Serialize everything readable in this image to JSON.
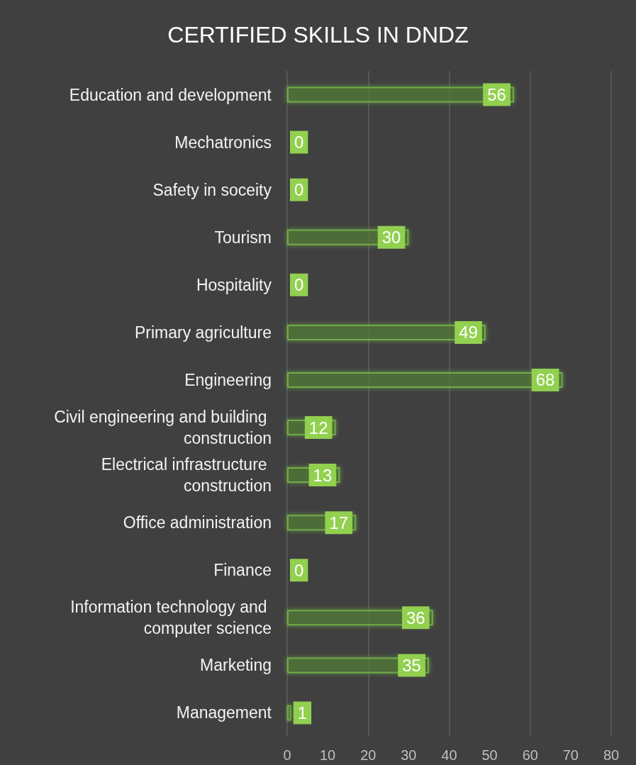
{
  "chart_data": {
    "type": "bar",
    "orientation": "horizontal",
    "title": "CERTIFIED SKILLS IN DNDZ",
    "categories": [
      "Education and development",
      "Mechatronics",
      "Safety in soceity",
      "Tourism",
      "Hospitality",
      "Primary agriculture",
      "Engineering",
      "Civil engineering and building construction",
      "Electrical infrastructure construction",
      "Office administration",
      "Finance",
      "Information technology and computer science",
      "Marketing",
      "Management"
    ],
    "values": [
      56,
      0,
      0,
      30,
      0,
      49,
      68,
      12,
      13,
      17,
      0,
      36,
      35,
      1
    ],
    "color": "#70ad47",
    "xlim": [
      0,
      80
    ],
    "xticks": [
      0,
      10,
      20,
      30,
      40,
      50,
      60,
      70,
      80
    ],
    "grid": "x",
    "data_labels": true
  }
}
